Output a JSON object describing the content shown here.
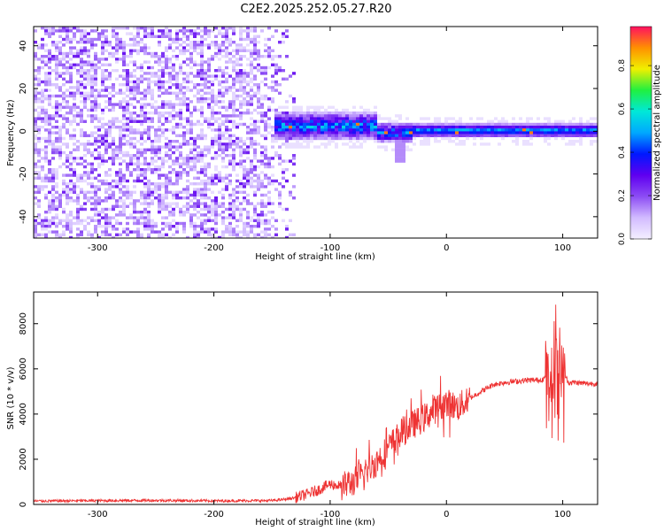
{
  "title": "C2E2.2025.252.05.27.R20",
  "chart_data": [
    {
      "type": "heatmap",
      "xlabel": "Height of straight line (km)",
      "ylabel": "Frequency (Hz)",
      "xlim": [
        -355,
        130
      ],
      "ylim": [
        -50,
        49
      ],
      "xticks": [
        -300,
        -200,
        -100,
        0,
        100
      ],
      "yticks": [
        -40,
        -20,
        0,
        20,
        40
      ],
      "colorbar": {
        "label": "Normalized spectral amplitude",
        "range": [
          0,
          0.98
        ],
        "ticks": [
          0.0,
          0.2,
          0.4,
          0.6,
          0.8
        ],
        "tick_labels": [
          "0.0",
          "0.2",
          "0.4",
          "0.6",
          "0.8"
        ],
        "colormap": [
          "#f4f0ff",
          "#d2bbff",
          "#8c4cf4",
          "#5f00f0",
          "#0018ff",
          "#00a8ff",
          "#00e8d8",
          "#20f040",
          "#f0f000",
          "#ff9000",
          "#ff1060"
        ]
      },
      "features": {
        "noise_region_x": [
          -355,
          -130
        ],
        "noise_amplitude": 0.15,
        "signal_band_center_hz": 0,
        "signal_start_x": -150,
        "signal_amplitude": 0.45
      }
    },
    {
      "type": "line",
      "xlabel": "Height of straight line (km)",
      "ylabel": "SNR (10 * v/v)",
      "xlim": [
        -355,
        130
      ],
      "ylim": [
        0,
        9400
      ],
      "xticks": [
        -300,
        -200,
        -100,
        0,
        100
      ],
      "yticks": [
        0,
        2000,
        4000,
        6000,
        8000
      ],
      "series": [
        {
          "color": "#ee3333",
          "x": [
            -355,
            -300,
            -250,
            -200,
            -150,
            -140,
            -130,
            -120,
            -110,
            -100,
            -90,
            -80,
            -70,
            -60,
            -50,
            -40,
            -30,
            -20,
            -10,
            0,
            10,
            20,
            30,
            40,
            50,
            60,
            70,
            80,
            85,
            90,
            95,
            100,
            105,
            110,
            120,
            130
          ],
          "y": [
            150,
            170,
            180,
            160,
            170,
            220,
            300,
            450,
            650,
            900,
            800,
            1000,
            1400,
            1900,
            2500,
            3100,
            3500,
            3800,
            4200,
            4500,
            4300,
            4700,
            5000,
            5300,
            5400,
            5450,
            5500,
            5500,
            5600,
            5700,
            6200,
            5900,
            5400,
            5400,
            5350,
            5350
          ]
        }
      ]
    }
  ]
}
